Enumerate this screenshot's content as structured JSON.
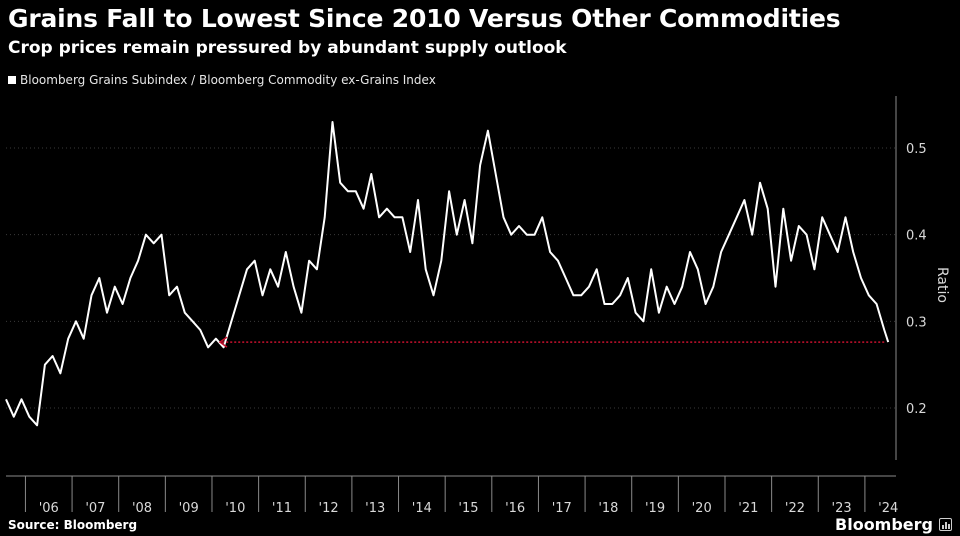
{
  "title": "Grains Fall to Lowest Since 2010 Versus Other Commodities",
  "subtitle": "Crop prices remain pressured by abundant supply outlook",
  "source": "Source: Bloomberg",
  "brand": "Bloomberg",
  "chart_data": {
    "type": "line",
    "legend_position": "top-left",
    "grid": true,
    "colors": {
      "background": "#000000",
      "line": "#ffffff",
      "grid": "#3a3a3a",
      "annotation": "#c8102e"
    },
    "ylabel": "Ratio",
    "ylim": [
      0.14,
      0.56
    ],
    "yticks": [
      0.2,
      0.3,
      0.4,
      0.5
    ],
    "xlim": [
      "2005-08",
      "2024-09"
    ],
    "xtick_labels": [
      "'06",
      "'07",
      "'08",
      "'09",
      "'10",
      "'11",
      "'12",
      "'13",
      "'14",
      "'15",
      "'16",
      "'17",
      "'18",
      "'19",
      "'20",
      "'21",
      "'22",
      "'23",
      "'24"
    ],
    "series": [
      {
        "name": "Bloomberg Grains Subindex / Bloomberg Commodity ex-Grains Index",
        "x": [
          "2005-08",
          "2005-10",
          "2005-12",
          "2006-02",
          "2006-04",
          "2006-06",
          "2006-08",
          "2006-10",
          "2006-12",
          "2007-02",
          "2007-04",
          "2007-06",
          "2007-08",
          "2007-10",
          "2007-12",
          "2008-02",
          "2008-04",
          "2008-06",
          "2008-08",
          "2008-10",
          "2008-12",
          "2009-02",
          "2009-04",
          "2009-06",
          "2009-08",
          "2009-10",
          "2009-12",
          "2010-02",
          "2010-04",
          "2010-06",
          "2010-08",
          "2010-10",
          "2010-12",
          "2011-02",
          "2011-04",
          "2011-06",
          "2011-08",
          "2011-10",
          "2011-12",
          "2012-02",
          "2012-04",
          "2012-06",
          "2012-08",
          "2012-10",
          "2012-12",
          "2013-02",
          "2013-04",
          "2013-06",
          "2013-08",
          "2013-10",
          "2013-12",
          "2014-02",
          "2014-04",
          "2014-06",
          "2014-08",
          "2014-10",
          "2014-12",
          "2015-02",
          "2015-04",
          "2015-06",
          "2015-08",
          "2015-10",
          "2015-12",
          "2016-02",
          "2016-04",
          "2016-06",
          "2016-08",
          "2016-10",
          "2016-12",
          "2017-02",
          "2017-04",
          "2017-06",
          "2017-08",
          "2017-10",
          "2017-12",
          "2018-02",
          "2018-04",
          "2018-06",
          "2018-08",
          "2018-10",
          "2018-12",
          "2019-02",
          "2019-04",
          "2019-06",
          "2019-08",
          "2019-10",
          "2019-12",
          "2020-02",
          "2020-04",
          "2020-06",
          "2020-08",
          "2020-10",
          "2020-12",
          "2021-02",
          "2021-04",
          "2021-06",
          "2021-08",
          "2021-10",
          "2021-12",
          "2022-02",
          "2022-04",
          "2022-06",
          "2022-08",
          "2022-10",
          "2022-12",
          "2023-02",
          "2023-04",
          "2023-06",
          "2023-08",
          "2023-10",
          "2023-12",
          "2024-02",
          "2024-04",
          "2024-06",
          "2024-07"
        ],
        "y": [
          0.21,
          0.19,
          0.21,
          0.19,
          0.18,
          0.25,
          0.26,
          0.24,
          0.28,
          0.3,
          0.28,
          0.33,
          0.35,
          0.31,
          0.34,
          0.32,
          0.35,
          0.37,
          0.4,
          0.39,
          0.4,
          0.33,
          0.34,
          0.31,
          0.3,
          0.29,
          0.27,
          0.28,
          0.27,
          0.3,
          0.33,
          0.36,
          0.37,
          0.33,
          0.36,
          0.34,
          0.38,
          0.34,
          0.31,
          0.37,
          0.36,
          0.42,
          0.53,
          0.46,
          0.45,
          0.45,
          0.43,
          0.47,
          0.42,
          0.43,
          0.42,
          0.42,
          0.38,
          0.44,
          0.36,
          0.33,
          0.37,
          0.45,
          0.4,
          0.44,
          0.39,
          0.48,
          0.52,
          0.47,
          0.42,
          0.4,
          0.41,
          0.4,
          0.4,
          0.42,
          0.38,
          0.37,
          0.35,
          0.33,
          0.33,
          0.34,
          0.36,
          0.32,
          0.32,
          0.33,
          0.35,
          0.31,
          0.3,
          0.36,
          0.31,
          0.34,
          0.32,
          0.34,
          0.38,
          0.36,
          0.32,
          0.34,
          0.38,
          0.4,
          0.42,
          0.44,
          0.4,
          0.46,
          0.43,
          0.34,
          0.43,
          0.37,
          0.41,
          0.4,
          0.36,
          0.42,
          0.4,
          0.38,
          0.42,
          0.38,
          0.35,
          0.33,
          0.32,
          0.29,
          0.276
        ]
      }
    ],
    "annotations": [
      {
        "type": "arrow",
        "from": "2024-07",
        "to": "2010-01",
        "y": 0.276,
        "style": "dotted",
        "color": "#c8102e"
      }
    ]
  }
}
